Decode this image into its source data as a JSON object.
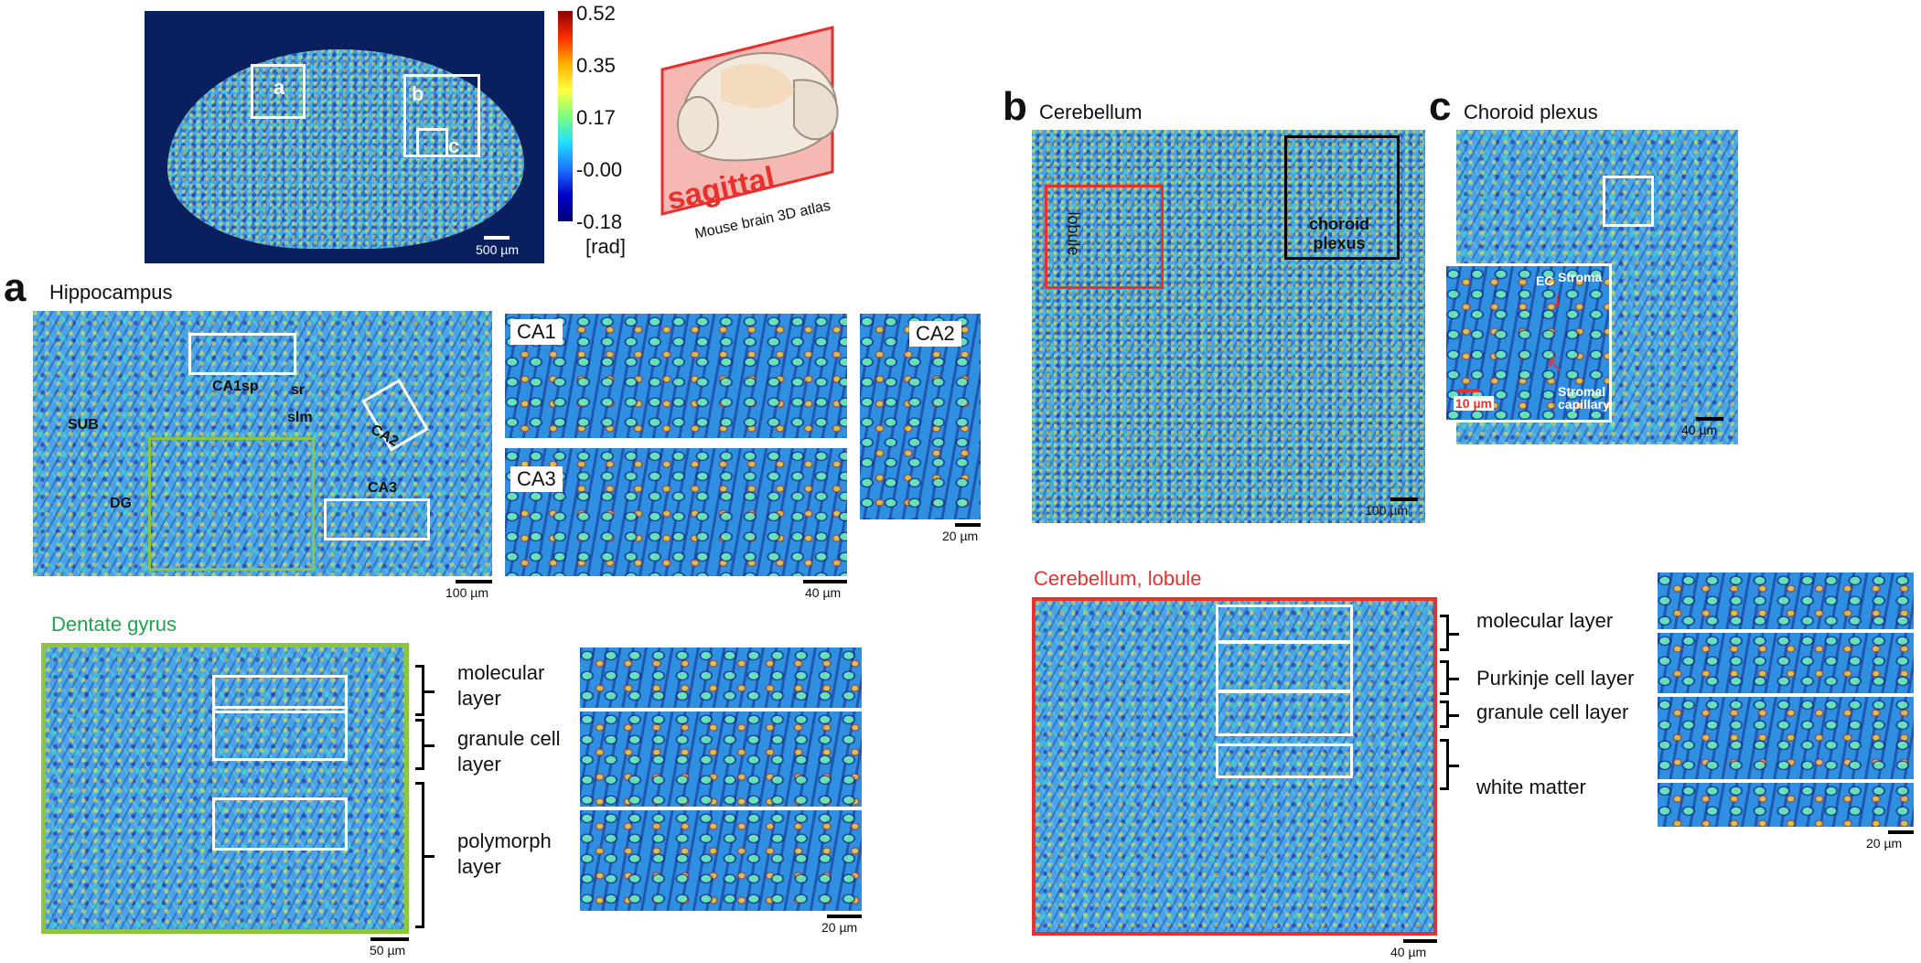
{
  "top": {
    "box_labels": [
      "a",
      "b",
      "c"
    ],
    "colorbar_ticks": [
      "0.52",
      "0.35",
      "0.17",
      "-0.00",
      "-0.18"
    ],
    "colorbar_unit": "[rad]",
    "scale": "500 µm",
    "atlas_plane": "sagittal",
    "atlas_caption": "Mouse brain 3D atlas",
    "colors": {
      "background": "#0a1f5e",
      "plane": "#e6312e"
    }
  },
  "panel_a": {
    "letter": "a",
    "title": "Hippocampus",
    "region_labels": [
      "CA1sp",
      "sr",
      "slm",
      "SUB",
      "CA2",
      "DG",
      "CA3"
    ],
    "main_scale": "100 µm",
    "insets": {
      "ca1": "CA1",
      "ca3": "CA3",
      "ca2": "CA2"
    },
    "inset_scale": "40 µm",
    "ca2_scale": "20 µm",
    "dg_title": "Dentate gyrus",
    "dg_layers": [
      "molecular\nlayer",
      "granule cell\nlayer",
      "polymorph\nlayer"
    ],
    "dg_scale": "50 µm",
    "dg_inset_scale": "20 µm",
    "colors": {
      "dg": "#8cc63f",
      "title_green": "#1aa64b"
    }
  },
  "panel_b": {
    "letter": "b",
    "title": "Cerebellum",
    "lobule_label": "lobule",
    "choroid_label": "choroid\nplexus",
    "scale": "100 µm",
    "lobule_title": "Cerebellum, lobule",
    "layers": [
      "molecular layer",
      "Purkinje cell layer",
      "granule cell layer",
      "white matter"
    ],
    "lobule_scale": "40 µm",
    "inset_scale": "20 µm",
    "colors": {
      "red": "#e6312e"
    }
  },
  "panel_c": {
    "letter": "c",
    "title": "Choroid plexus",
    "inset_labels": {
      "ec": "EC",
      "stroma": "Stroma",
      "stromal_capillary": "Stromal\ncapillary"
    },
    "inset_scale": "10 µm",
    "scale": "40 µm"
  }
}
